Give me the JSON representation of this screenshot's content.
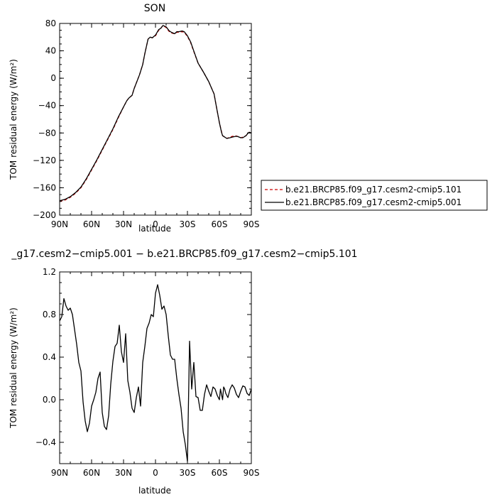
{
  "chart_data": [
    {
      "type": "line",
      "title": "SON",
      "xlabel": "latitude",
      "ylabel": "TOM residual energy (W/m²)",
      "xlim": [
        90,
        -90
      ],
      "ylim": [
        -200,
        80
      ],
      "xticks": [
        90,
        60,
        30,
        0,
        -30,
        -60,
        -90
      ],
      "xtick_labels": [
        "90N",
        "60N",
        "30N",
        "0",
        "30S",
        "60S",
        "90S"
      ],
      "yticks": [
        -200,
        -160,
        -120,
        -80,
        -40,
        0,
        40,
        80
      ],
      "ytick_labels": [
        "−200",
        "−160",
        "−120",
        "−80",
        "−40",
        "0",
        "40",
        "80"
      ],
      "grid": false,
      "legend_position": "right",
      "series": [
        {
          "name": "b.e21.BRCP85.f09_g17.cesm2-cmip5.101",
          "color": "#cc0000",
          "dash": "dashed",
          "x": [
            90,
            85,
            80,
            75,
            70,
            65,
            60,
            55,
            50,
            45,
            40,
            35,
            30,
            27,
            25,
            22,
            20,
            15,
            12,
            10,
            7,
            5,
            3,
            0,
            -3,
            -5,
            -7,
            -10,
            -13,
            -15,
            -18,
            -20,
            -22,
            -25,
            -27,
            -30,
            -33,
            -35,
            -40,
            -45,
            -50,
            -55,
            -57,
            -60,
            -62,
            -63,
            -65,
            -67,
            -70,
            -72,
            -75,
            -77,
            -80,
            -82,
            -85,
            -87,
            -88,
            -90
          ],
          "y": [
            -180,
            -178,
            -174,
            -168,
            -160,
            -148,
            -134,
            -120,
            -105,
            -90,
            -75,
            -58,
            -42,
            -33,
            -29,
            -25,
            -15,
            5,
            20,
            36,
            57,
            60,
            59,
            62,
            70,
            73,
            77,
            74,
            68,
            66,
            65,
            67,
            67,
            68,
            67,
            61,
            52,
            43,
            22,
            9,
            -5,
            -23,
            -40,
            -65,
            -78,
            -84,
            -86,
            -88,
            -86,
            -85,
            -84,
            -85,
            -87,
            -86,
            -84,
            -80,
            -79,
            -80
          ]
        },
        {
          "name": "b.e21.BRCP85.f09_g17.cesm2-cmip5.001",
          "color": "#000000",
          "dash": "solid",
          "x": [
            90,
            85,
            80,
            75,
            70,
            65,
            60,
            55,
            50,
            45,
            40,
            35,
            30,
            27,
            25,
            22,
            20,
            15,
            12,
            10,
            7,
            5,
            3,
            0,
            -3,
            -5,
            -7,
            -10,
            -13,
            -15,
            -18,
            -20,
            -22,
            -25,
            -27,
            -30,
            -33,
            -35,
            -40,
            -45,
            -50,
            -55,
            -57,
            -60,
            -62,
            -63,
            -65,
            -67,
            -70,
            -72,
            -75,
            -77,
            -80,
            -82,
            -85,
            -87,
            -88,
            -90
          ],
          "y": [
            -179,
            -177,
            -173,
            -167,
            -159,
            -147,
            -133,
            -119,
            -104,
            -89,
            -74,
            -57,
            -42,
            -33,
            -29,
            -25,
            -15,
            5,
            20,
            36,
            57,
            60,
            59,
            63,
            71,
            73,
            77,
            75,
            69,
            67,
            65,
            68,
            68,
            69,
            68,
            62,
            53,
            44,
            22,
            9,
            -5,
            -23,
            -40,
            -65,
            -79,
            -84,
            -86,
            -88,
            -87,
            -86,
            -85,
            -85,
            -87,
            -87,
            -84,
            -80,
            -79,
            -80
          ]
        }
      ]
    },
    {
      "type": "line",
      "title": "_g17.cesm2−cmip5.001 − b.e21.BRCP85.f09_g17.cesm2−cmip5.101",
      "xlabel": "latitude",
      "ylabel": "TOM residual energy (W/m²)",
      "xlim": [
        90,
        -90
      ],
      "ylim": [
        -0.6,
        1.2
      ],
      "xticks": [
        90,
        60,
        30,
        0,
        -30,
        -60,
        -90
      ],
      "xtick_labels": [
        "90N",
        "60N",
        "30N",
        "0",
        "30S",
        "60S",
        "90S"
      ],
      "yticks": [
        -0.4,
        0.0,
        0.4,
        0.8,
        1.2
      ],
      "ytick_labels": [
        "−0.4",
        "0.0",
        "0.4",
        "0.8",
        "1.2"
      ],
      "grid": false,
      "series": [
        {
          "color": "#000000",
          "dash": "solid",
          "x": [
            90,
            88,
            86,
            84,
            82,
            80,
            78,
            76,
            74,
            72,
            70,
            68,
            66,
            64,
            62,
            60,
            58,
            56,
            54,
            52,
            50,
            48,
            46,
            44,
            42,
            40,
            38,
            36,
            34,
            32,
            30,
            28,
            26,
            24,
            22,
            20,
            18,
            16,
            14,
            12,
            10,
            8,
            6,
            4,
            2,
            0,
            -2,
            -4,
            -6,
            -8,
            -10,
            -12,
            -14,
            -16,
            -18,
            -20,
            -22,
            -24,
            -26,
            -28,
            -30,
            -32,
            -34,
            -36,
            -38,
            -40,
            -42,
            -44,
            -46,
            -48,
            -50,
            -52,
            -54,
            -56,
            -58,
            -60,
            -61,
            -62,
            -63,
            -64,
            -65,
            -66,
            -68,
            -70,
            -72,
            -74,
            -76,
            -78,
            -80,
            -82,
            -84,
            -86,
            -88,
            -90
          ],
          "y": [
            0.74,
            0.78,
            0.95,
            0.88,
            0.84,
            0.86,
            0.8,
            0.66,
            0.52,
            0.35,
            0.27,
            -0.02,
            -0.2,
            -0.3,
            -0.22,
            -0.06,
            0.0,
            0.07,
            0.2,
            0.26,
            -0.12,
            -0.25,
            -0.28,
            -0.15,
            0.15,
            0.36,
            0.5,
            0.53,
            0.7,
            0.45,
            0.35,
            0.62,
            0.18,
            0.07,
            -0.08,
            -0.12,
            0.02,
            0.12,
            -0.06,
            0.35,
            0.5,
            0.67,
            0.72,
            0.8,
            0.78,
            1.0,
            1.08,
            0.98,
            0.85,
            0.88,
            0.8,
            0.6,
            0.42,
            0.38,
            0.38,
            0.2,
            0.05,
            -0.08,
            -0.3,
            -0.42,
            -0.58,
            0.55,
            0.1,
            0.35,
            0.03,
            0.02,
            -0.1,
            -0.1,
            0.05,
            0.14,
            0.08,
            0.03,
            0.12,
            0.1,
            0.04,
            0.0,
            0.1,
            0.05,
            0.0,
            0.12,
            0.1,
            0.06,
            0.02,
            0.1,
            0.14,
            0.11,
            0.05,
            0.02,
            0.08,
            0.13,
            0.12,
            0.06,
            0.04,
            0.1
          ]
        }
      ]
    }
  ]
}
